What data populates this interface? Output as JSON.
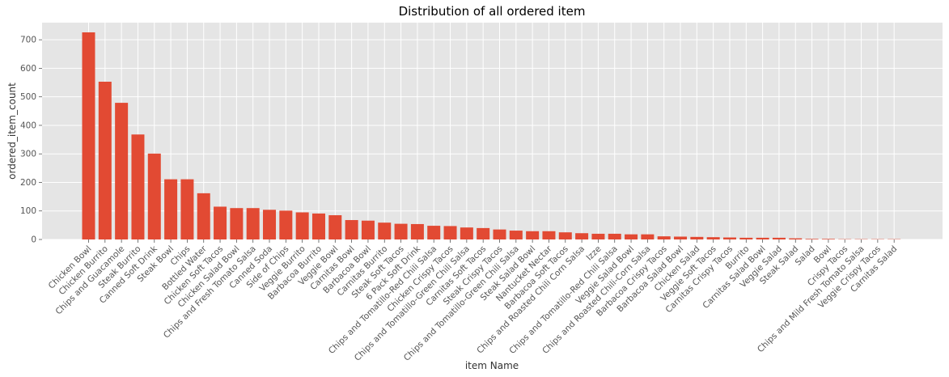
{
  "chart_data": {
    "type": "bar",
    "title": "Distribution of all ordered item",
    "xlabel": "item Name",
    "ylabel": "ordered_item_count",
    "ylim": [
      0,
      760
    ],
    "yticks": [
      0,
      100,
      200,
      300,
      400,
      500,
      600,
      700
    ],
    "grid": true,
    "bar_color": "#E24A33",
    "background_color": "#E5E5E5",
    "categories": [
      "Chicken Bowl",
      "Chicken Burrito",
      "Chips and Guacamole",
      "Steak Burrito",
      "Canned Soft Drink",
      "Steak Bowl",
      "Chips",
      "Bottled Water",
      "Chicken Soft Tacos",
      "Chicken Salad Bowl",
      "Chips and Fresh Tomato Salsa",
      "Canned Soda",
      "Side of Chips",
      "Veggie Burrito",
      "Barbacoa Burrito",
      "Veggie Bowl",
      "Carnitas Bowl",
      "Barbacoa Bowl",
      "Carnitas Burrito",
      "Steak Soft Tacos",
      "6 Pack Soft Drink",
      "Chips and Tomatillo-Red Chili Salsa",
      "Chicken Crispy Tacos",
      "Chips and Tomatillo-Green Chili Salsa",
      "Carnitas Soft Tacos",
      "Steak Crispy Tacos",
      "Chips and Tomatillo-Green Chili Salsa",
      "Steak Salad Bowl",
      "Nantucket Nectar",
      "Barbacoa Soft Tacos",
      "Chips and Roasted Chili Corn Salsa",
      "Izze",
      "Chips and Tomatillo-Red Chili Salsa",
      "Veggie Salad Bowl",
      "Chips and Roasted Chili-Corn Salsa",
      "Barbacoa Crispy Tacos",
      "Barbacoa Salad Bowl",
      "Chicken Salad",
      "Veggie Soft Tacos",
      "Carnitas Crispy Tacos",
      "Burrito",
      "Carnitas Salad Bowl",
      "Veggie Salad",
      "Steak Salad",
      "Salad",
      "Bowl",
      "Crispy Tacos",
      "Chips and Mild Fresh Tomato Salsa",
      "Veggie Crispy Tacos",
      "Carnitas Salad"
    ],
    "values": [
      726,
      553,
      479,
      368,
      301,
      211,
      211,
      162,
      115,
      110,
      110,
      104,
      101,
      95,
      91,
      85,
      68,
      66,
      59,
      55,
      54,
      48,
      47,
      42,
      40,
      35,
      31,
      29,
      29,
      25,
      22,
      20,
      20,
      18,
      18,
      11,
      10,
      9,
      8,
      7,
      6,
      6,
      6,
      4,
      2,
      2,
      1,
      1,
      1,
      1
    ]
  }
}
